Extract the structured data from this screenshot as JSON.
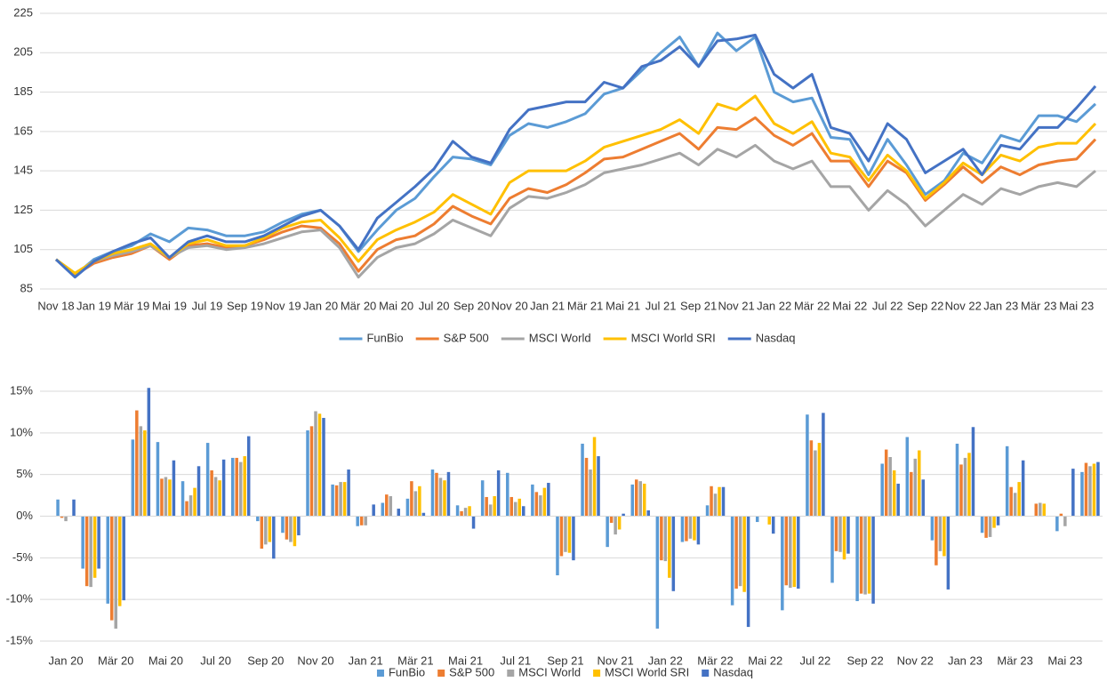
{
  "chart_data": [
    {
      "type": "line",
      "categories": [
        "Nov 18",
        null,
        "Jan 19",
        null,
        "Mär 19",
        null,
        "Mai 19",
        null,
        "Jul 19",
        null,
        "Sep 19",
        null,
        "Nov 19",
        null,
        "Jan 20",
        null,
        "Mär 20",
        null,
        "Mai 20",
        null,
        "Jul 20",
        null,
        "Sep 20",
        null,
        "Nov 20",
        null,
        "Jan 21",
        null,
        "Mär 21",
        null,
        "Mai 21",
        null,
        "Jul 21",
        null,
        "Sep 21",
        null,
        "Nov 21",
        null,
        "Jan 22",
        null,
        "Mär 22",
        null,
        "Mai 22",
        null,
        "Jul 22",
        null,
        "Sep 22",
        null,
        "Nov 22",
        null,
        "Jan 23",
        null,
        "Mär 23",
        null,
        "Mai 23",
        null
      ],
      "series": [
        {
          "name": "FunBio",
          "color": "#5b9bd5",
          "values": [
            100,
            92,
            100,
            104,
            107,
            113,
            109,
            116,
            115,
            112,
            112,
            114,
            119,
            123,
            125,
            117,
            104,
            115,
            125,
            131,
            142,
            152,
            151,
            148,
            163,
            169,
            167,
            170,
            174,
            184,
            187,
            196,
            205,
            213,
            198,
            215,
            206,
            213,
            185,
            180,
            182,
            162,
            161,
            143,
            161,
            148,
            133,
            140,
            154,
            149,
            163,
            160,
            173,
            173,
            170,
            179
          ]
        },
        {
          "name": "S&P 500",
          "color": "#ed7d31",
          "values": [
            100,
            92,
            98,
            101,
            103,
            107,
            100,
            107,
            108,
            106,
            107,
            110,
            114,
            117,
            116,
            108,
            94,
            105,
            110,
            112,
            118,
            127,
            122,
            118,
            131,
            136,
            134,
            138,
            144,
            151,
            152,
            156,
            160,
            164,
            156,
            167,
            166,
            172,
            163,
            158,
            164,
            150,
            150,
            137,
            150,
            144,
            130,
            138,
            147,
            139,
            147,
            143,
            148,
            150,
            151,
            161
          ]
        },
        {
          "name": "MSCI World",
          "color": "#a5a5a5",
          "values": [
            100,
            93,
            99,
            102,
            104,
            107,
            101,
            106,
            107,
            105,
            106,
            108,
            111,
            114,
            115,
            106,
            91,
            101,
            106,
            108,
            113,
            120,
            116,
            112,
            126,
            132,
            131,
            134,
            138,
            144,
            146,
            148,
            151,
            154,
            148,
            156,
            152,
            158,
            150,
            146,
            150,
            137,
            137,
            125,
            135,
            128,
            117,
            125,
            133,
            128,
            136,
            133,
            137,
            139,
            137,
            145
          ]
        },
        {
          "name": "MSCI World SRI",
          "color": "#ffc000",
          "values": [
            100,
            93,
            99,
            103,
            105,
            108,
            101,
            108,
            110,
            107,
            107,
            111,
            116,
            119,
            120,
            111,
            99,
            110,
            115,
            119,
            124,
            133,
            128,
            123,
            139,
            145,
            145,
            145,
            150,
            157,
            160,
            163,
            166,
            171,
            164,
            179,
            176,
            183,
            169,
            164,
            170,
            154,
            152,
            140,
            153,
            145,
            131,
            139,
            149,
            143,
            153,
            150,
            157,
            159,
            159,
            169
          ]
        },
        {
          "name": "Nasdaq",
          "color": "#4472c4",
          "values": [
            100,
            91,
            99,
            104,
            108,
            111,
            101,
            109,
            112,
            109,
            109,
            112,
            117,
            122,
            125,
            117,
            105,
            121,
            129,
            137,
            146,
            160,
            152,
            149,
            166,
            176,
            178,
            180,
            180,
            190,
            187,
            198,
            201,
            208,
            198,
            211,
            212,
            214,
            194,
            187,
            194,
            167,
            164,
            150,
            169,
            161,
            144,
            150,
            156,
            143,
            158,
            156,
            167,
            167,
            177,
            188
          ]
        }
      ],
      "ylim": [
        85,
        225
      ],
      "yticks": [
        85,
        105,
        125,
        145,
        165,
        185,
        205,
        225
      ],
      "grid": true,
      "legend": "bottom"
    },
    {
      "type": "bar",
      "categories": [
        "Jan 20",
        null,
        "Mär 20",
        null,
        "Mai 20",
        null,
        "Jul 20",
        null,
        "Sep 20",
        null,
        "Nov 20",
        null,
        "Jan 21",
        null,
        "Mär 21",
        null,
        "Mai 21",
        null,
        "Jul 21",
        null,
        "Sep 21",
        null,
        "Nov 21",
        null,
        "Jan 22",
        null,
        "Mär 22",
        null,
        "Mai 22",
        null,
        "Jul 22",
        null,
        "Sep 22",
        null,
        "Nov 22",
        null,
        "Jan 23",
        null,
        "Mär 23",
        null,
        "Mai 23",
        null
      ],
      "series": [
        {
          "name": "FunBio",
          "color": "#5b9bd5",
          "values": [
            2.0,
            -6.3,
            -10.5,
            9.2,
            8.9,
            4.2,
            8.8,
            7.0,
            -0.6,
            -2.0,
            10.3,
            3.8,
            -1.2,
            1.6,
            2.1,
            5.6,
            1.3,
            4.3,
            5.2,
            3.8,
            -7.1,
            8.7,
            -3.7,
            3.8,
            -13.5,
            -3.1,
            1.3,
            -10.7,
            -0.7,
            -11.3,
            12.2,
            -8.0,
            -10.2,
            6.3,
            9.5,
            -2.9,
            8.7,
            -2.0,
            8.4,
            0,
            -1.8,
            5.3
          ]
        },
        {
          "name": "S&P 500",
          "color": "#ed7d31",
          "values": [
            -0.2,
            -8.4,
            -12.5,
            12.7,
            4.5,
            1.8,
            5.5,
            7.0,
            -3.9,
            -2.8,
            10.8,
            3.7,
            -1.1,
            2.6,
            4.2,
            5.2,
            0.6,
            2.3,
            2.3,
            2.9,
            -4.8,
            7.0,
            -0.8,
            4.4,
            -5.3,
            -3.0,
            3.6,
            -8.7,
            0,
            -8.3,
            9.1,
            -4.2,
            -9.3,
            8.0,
            5.3,
            -5.9,
            6.2,
            -2.6,
            3.5,
            1.5,
            0.3,
            6.4
          ]
        },
        {
          "name": "MSCI World",
          "color": "#a5a5a5",
          "values": [
            -0.6,
            -8.5,
            -13.5,
            10.8,
            4.7,
            2.5,
            4.7,
            6.5,
            -3.4,
            -3.1,
            12.6,
            4.1,
            -1.1,
            2.4,
            3.0,
            4.6,
            1.0,
            1.4,
            1.7,
            2.5,
            -4.3,
            5.6,
            -2.2,
            4.2,
            -5.4,
            -2.7,
            2.7,
            -8.4,
            0,
            -8.6,
            7.9,
            -4.3,
            -9.4,
            7.1,
            6.9,
            -4.2,
            7.0,
            -2.5,
            2.8,
            1.6,
            -1.2,
            6.0
          ]
        },
        {
          "name": "MSCI World SRI",
          "color": "#ffc000",
          "values": [
            0,
            -7.4,
            -10.8,
            10.3,
            4.4,
            3.4,
            4.3,
            7.2,
            -3.1,
            -3.6,
            12.3,
            4.1,
            0,
            0,
            3.6,
            4.3,
            1.2,
            2.4,
            2.1,
            3.4,
            -4.4,
            9.5,
            -1.6,
            3.9,
            -7.4,
            -2.9,
            3.5,
            -9.1,
            -1.0,
            -8.5,
            8.8,
            -5.2,
            -9.3,
            5.5,
            7.9,
            -4.8,
            7.6,
            -1.4,
            4.1,
            1.5,
            0,
            6.3
          ]
        },
        {
          "name": "Nasdaq",
          "color": "#4472c4",
          "values": [
            2.0,
            -6.3,
            -10.1,
            15.4,
            6.7,
            6.0,
            6.8,
            9.6,
            -5.1,
            -2.3,
            11.8,
            5.6,
            1.4,
            0.9,
            0.4,
            5.3,
            -1.5,
            5.5,
            1.2,
            4.0,
            -5.3,
            7.2,
            0.3,
            0.7,
            -9.0,
            -3.4,
            3.5,
            -13.3,
            -2.1,
            -8.7,
            12.4,
            -4.5,
            -10.5,
            3.9,
            4.4,
            -8.8,
            10.7,
            -1.1,
            6.7,
            0,
            5.7,
            6.5
          ]
        }
      ],
      "ylim": [
        -15,
        15
      ],
      "yticks": [
        {
          "value": -15,
          "label": "-15%"
        },
        {
          "value": -10,
          "label": "-10%"
        },
        {
          "value": -5,
          "label": "-5%"
        },
        {
          "value": 0,
          "label": "0%"
        },
        {
          "value": 5,
          "label": "5%"
        },
        {
          "value": 10,
          "label": "10%"
        },
        {
          "value": 15,
          "label": "15%"
        }
      ],
      "grid": true,
      "legend": "bottom"
    }
  ]
}
